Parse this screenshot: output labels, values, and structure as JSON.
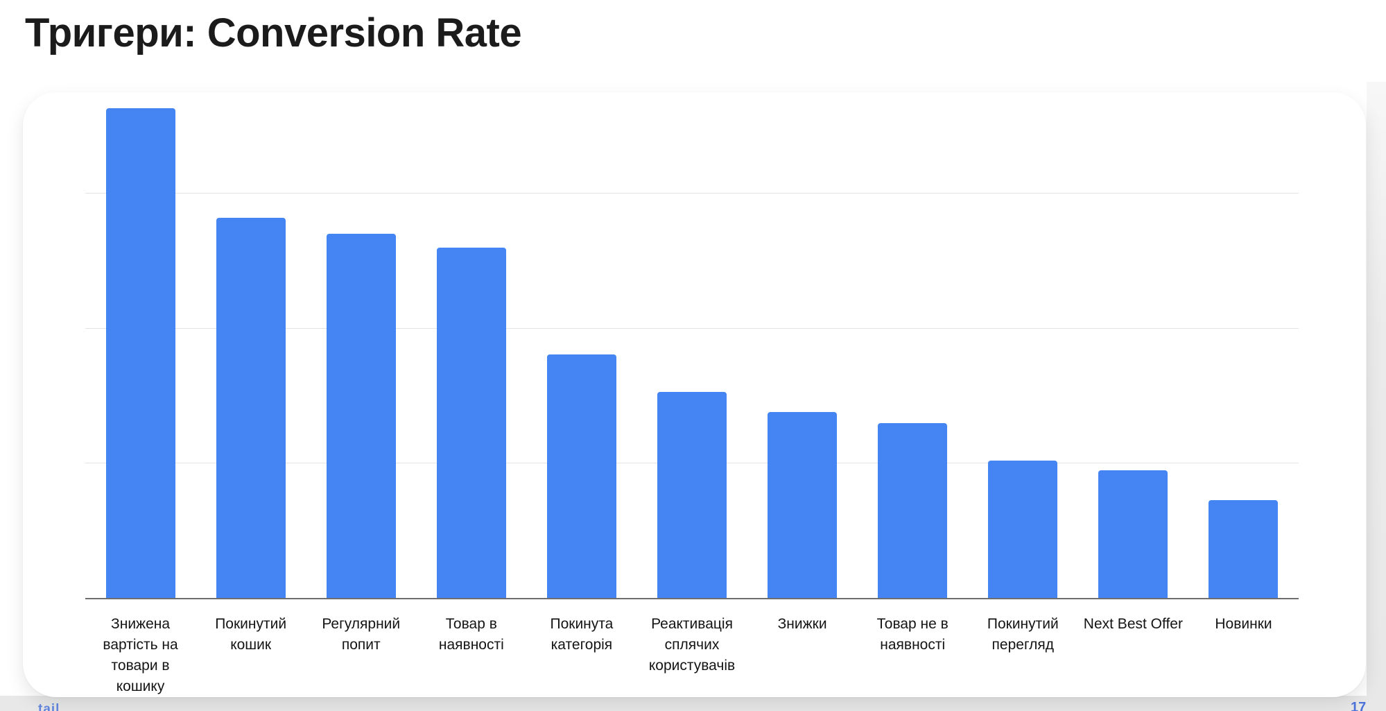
{
  "page": {
    "title": "Тригери: Conversion Rate",
    "page_number": "17",
    "footer_brand_fragment": "tail"
  },
  "colors": {
    "bar_blue": "#4484f3",
    "gridline": "#e3e3e3",
    "axis_line": "#6e6e6e",
    "title_text": "#1b1b1b",
    "label_text": "#141414",
    "backdrop_grey": "#e8e8e8",
    "footer_blue": "#4a72d8"
  },
  "chart_data": {
    "type": "bar",
    "title": "Тригери: Conversion Rate",
    "categories": [
      "Знижена вартість на товари в кошику",
      "Покинутий кошик",
      "Регулярний попит",
      "Товар в наявності",
      "Покинута категорія",
      "Реактивація сплячих користувачів",
      "Знижки",
      "Товар не в наявності",
      "Покинутий перегляд",
      "Next Best Offer",
      "Новинки"
    ],
    "values": [
      3.63,
      2.82,
      2.7,
      2.6,
      1.81,
      1.53,
      1.38,
      1.3,
      1.02,
      0.95,
      0.73
    ],
    "series_name": "Conversion Rate",
    "xlabel": "",
    "ylabel": "",
    "ylim": [
      0,
      3.75
    ],
    "gridline_interval": 1,
    "gridlines_at": [
      1,
      2,
      3
    ],
    "value_axis_tick_labels_visible": false,
    "data_value_labels_visible": false,
    "grid": true,
    "legend": "none",
    "bar_color": "#4484f3"
  }
}
